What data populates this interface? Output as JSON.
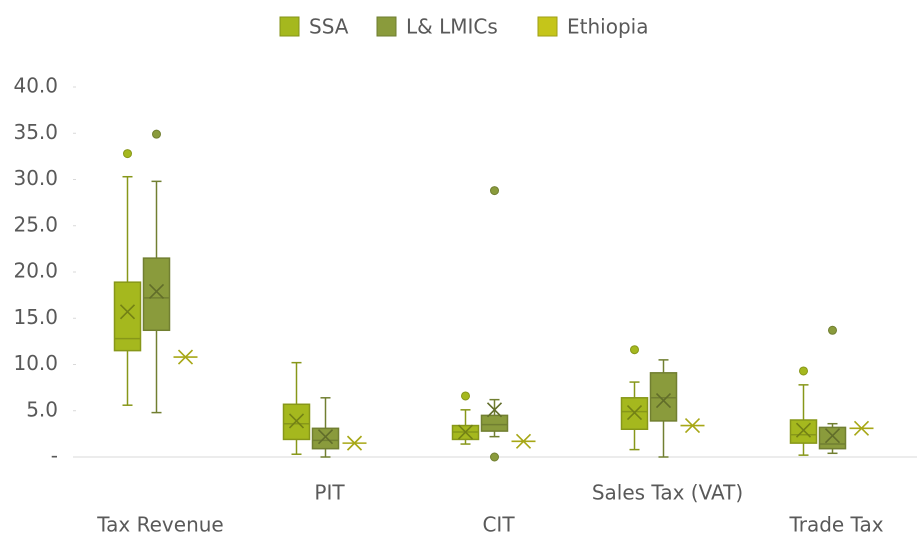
{
  "chart_data": {
    "type": "box",
    "categories": [
      "Tax Revenue",
      "PIT",
      "CIT",
      "Sales Tax (VAT)",
      "Trade Tax"
    ],
    "ylim": [
      0,
      40
    ],
    "yticks": [
      {
        "value": 0,
        "label": "-"
      },
      {
        "value": 5,
        "label": "5.0"
      },
      {
        "value": 10,
        "label": "10.0"
      },
      {
        "value": 15,
        "label": "15.0"
      },
      {
        "value": 20,
        "label": "20.0"
      },
      {
        "value": 25,
        "label": "25.0"
      },
      {
        "value": 30,
        "label": "30.0"
      },
      {
        "value": 35,
        "label": "35.0"
      },
      {
        "value": 40,
        "label": "40.0"
      }
    ],
    "grid": false,
    "legend": "top",
    "series": [
      {
        "name": "SSA",
        "color": "#a5b81e",
        "boxes": [
          {
            "min": 5.6,
            "q1": 11.5,
            "median": 12.8,
            "q3": 18.9,
            "max": 30.3,
            "mean": 15.7,
            "outliers": [
              32.8
            ]
          },
          {
            "min": 0.3,
            "q1": 1.9,
            "median": 3.6,
            "q3": 5.7,
            "max": 10.2,
            "mean": 3.9,
            "outliers": []
          },
          {
            "min": 1.4,
            "q1": 1.9,
            "median": 2.7,
            "q3": 3.4,
            "max": 5.1,
            "mean": 2.7,
            "outliers": [
              6.6
            ]
          },
          {
            "min": 0.8,
            "q1": 3.0,
            "median": 4.9,
            "q3": 6.4,
            "max": 8.1,
            "mean": 4.8,
            "outliers": [
              11.6
            ]
          },
          {
            "min": 0.2,
            "q1": 1.5,
            "median": 2.4,
            "q3": 4.0,
            "max": 7.8,
            "mean": 2.9,
            "outliers": [
              9.3
            ]
          }
        ]
      },
      {
        "name": "L& LMICs",
        "color": "#8a9b3c",
        "boxes": [
          {
            "min": 4.8,
            "q1": 13.7,
            "median": 17.2,
            "q3": 21.5,
            "max": 29.8,
            "mean": 17.9,
            "outliers": [
              34.9
            ]
          },
          {
            "min": 0,
            "q1": 0.9,
            "median": 1.8,
            "q3": 3.1,
            "max": 6.4,
            "mean": 2.2,
            "outliers": []
          },
          {
            "min": 2.2,
            "q1": 2.8,
            "median": 3.5,
            "q3": 4.5,
            "max": 6.2,
            "mean": 5.1,
            "outliers": [
              28.8,
              0
            ]
          },
          {
            "min": 0,
            "q1": 3.9,
            "median": 6.4,
            "q3": 9.1,
            "max": 10.5,
            "mean": 6.1,
            "outliers": []
          },
          {
            "min": 0.4,
            "q1": 0.9,
            "median": 1.4,
            "q3": 3.2,
            "max": 3.6,
            "mean": 2.3,
            "outliers": [
              13.7
            ]
          }
        ]
      },
      {
        "name": "Ethiopia",
        "color": "#c5c51a",
        "values": [
          10.8,
          1.5,
          1.7,
          3.4,
          3.1
        ]
      }
    ]
  }
}
